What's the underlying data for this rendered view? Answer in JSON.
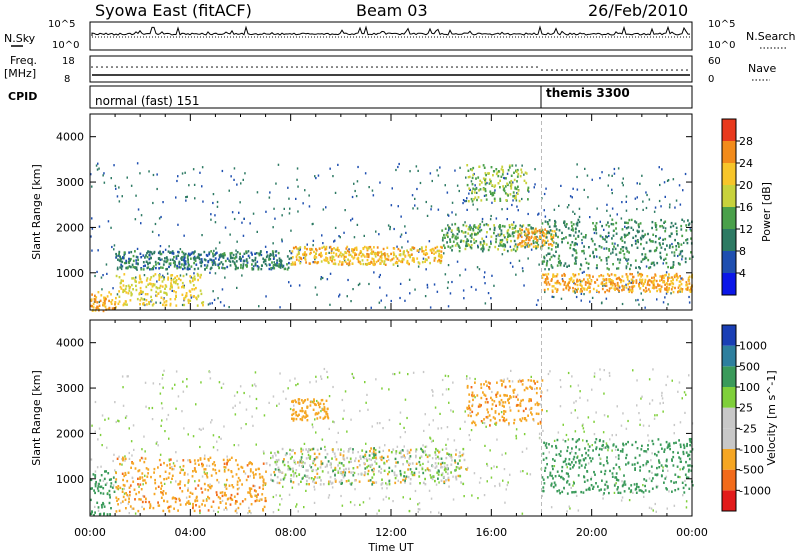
{
  "header": {
    "title": "Syowa East (fitACF)",
    "beam": "Beam 03",
    "date": "26/Feb/2010"
  },
  "summary_panels": {
    "nsky_label": "N.Sky",
    "nsky_ticks": [
      "10^5",
      "10^0"
    ],
    "nsearch_label": "N.Search",
    "nsearch_ticks": [
      "10^5",
      "10^0"
    ],
    "freq_label": "Freq.",
    "freq_unit": "[MHz]",
    "freq_ticks": [
      "18",
      "8"
    ],
    "nave_label": "Nave",
    "nave_ticks": [
      "60",
      "0"
    ],
    "cpid_label": "CPID",
    "cpid_segments": [
      {
        "name": "normal (fast) 151",
        "start": "00:00"
      },
      {
        "name": "themis 3300",
        "start": "18:00"
      }
    ]
  },
  "chart_data": [
    {
      "type": "heatmap",
      "name": "power",
      "x_label": "Time UT",
      "x_ticks": [
        "00:00",
        "04:00",
        "08:00",
        "12:00",
        "16:00",
        "20:00",
        "00:00"
      ],
      "xlim_hours": [
        0,
        24
      ],
      "y_label": "Slant Range [km]",
      "y_ticks": [
        1000,
        2000,
        3000,
        4000
      ],
      "ylim": [
        180,
        4500
      ],
      "colorbar_label": "Power [dB]",
      "colorbar_ticks": [
        4,
        8,
        12,
        16,
        20,
        24,
        28
      ],
      "colorbar_colors": [
        "#0b17e8",
        "#1f4fb0",
        "#2d7a63",
        "#4aa04a",
        "#c8d23c",
        "#f7c52a",
        "#f28b1b",
        "#e8391d"
      ],
      "bands": [
        {
          "t0": 0.0,
          "t1": 1.0,
          "r0": 180,
          "r1": 600,
          "value_db": 24
        },
        {
          "t0": 1.0,
          "t1": 4.5,
          "r0": 300,
          "r1": 1000,
          "value_db": 20
        },
        {
          "t0": 1.0,
          "t1": 8.0,
          "r0": 1100,
          "r1": 1500,
          "value_db": 10
        },
        {
          "t0": 8.0,
          "t1": 14.0,
          "r0": 1200,
          "r1": 1600,
          "value_db": 22
        },
        {
          "t0": 14.0,
          "t1": 18.0,
          "r0": 1500,
          "r1": 2100,
          "value_db": 14
        },
        {
          "t0": 15.0,
          "t1": 17.5,
          "r0": 2600,
          "r1": 3400,
          "value_db": 16
        },
        {
          "t0": 17.0,
          "t1": 18.5,
          "r0": 1600,
          "r1": 2000,
          "value_db": 24
        },
        {
          "t0": 18.0,
          "t1": 24.0,
          "r0": 600,
          "r1": 1000,
          "value_db": 24
        },
        {
          "t0": 18.0,
          "t1": 24.0,
          "r0": 1100,
          "r1": 2200,
          "value_db": 12
        }
      ]
    },
    {
      "type": "heatmap",
      "name": "velocity",
      "x_label": "Time UT",
      "x_ticks": [
        "00:00",
        "04:00",
        "08:00",
        "12:00",
        "16:00",
        "20:00",
        "00:00"
      ],
      "xlim_hours": [
        0,
        24
      ],
      "y_label": "Slant Range [km]",
      "y_ticks": [
        1000,
        2000,
        3000,
        4000
      ],
      "ylim": [
        180,
        4500
      ],
      "colorbar_label": "Velocity [m s^-1]",
      "colorbar_ticks": [
        -1000,
        -500,
        -100,
        -25,
        25,
        100,
        500,
        1000
      ],
      "colorbar_colors": [
        "#e21b1b",
        "#f26b1b",
        "#f5a623",
        "#c8c8c8",
        "#c8c8c8",
        "#7fcf3a",
        "#3a9a5a",
        "#2e7f9e",
        "#1a3fb5"
      ],
      "bands": [
        {
          "t0": 0.0,
          "t1": 1.0,
          "r0": 200,
          "r1": 1200,
          "value_ms": 300
        },
        {
          "t0": 1.0,
          "t1": 7.0,
          "r0": 300,
          "r1": 1500,
          "value_ms": -400
        },
        {
          "t0": 7.0,
          "t1": 15.0,
          "r0": 900,
          "r1": 1700,
          "value_ms": 0
        },
        {
          "t0": 8.0,
          "t1": 9.5,
          "r0": 2300,
          "r1": 2800,
          "value_ms": -300
        },
        {
          "t0": 15.0,
          "t1": 18.0,
          "r0": 2200,
          "r1": 3200,
          "value_ms": -400
        },
        {
          "t0": 18.0,
          "t1": 24.0,
          "r0": 700,
          "r1": 1900,
          "value_ms": 300
        }
      ]
    }
  ]
}
